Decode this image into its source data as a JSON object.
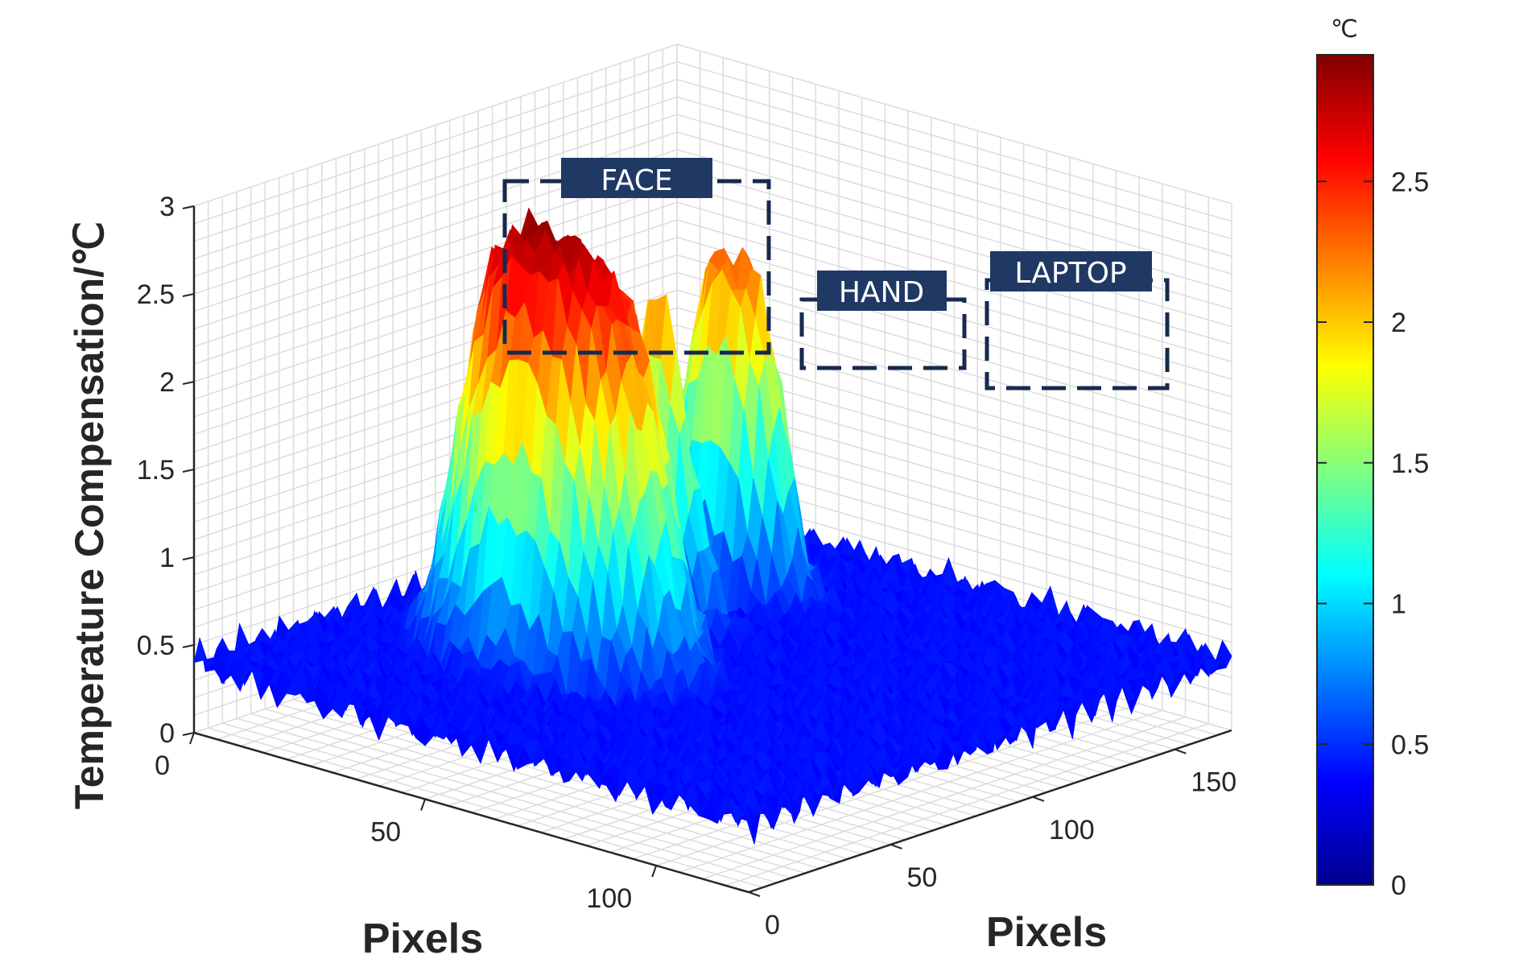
{
  "chart_data": {
    "type": "surface",
    "zlabel": "Temperature Compensation/℃",
    "xlabel": "Pixels",
    "ylabel": "Pixels",
    "x_ticks": [
      0,
      50,
      100
    ],
    "y_ticks": [
      0,
      50,
      100,
      150
    ],
    "z_ticks": [
      "0",
      "0.5",
      "1",
      "1.5",
      "2",
      "2.5",
      "3"
    ],
    "zlim": [
      0,
      3
    ],
    "grid": true,
    "colormap": "jet",
    "colorbar": {
      "unit": "℃",
      "ticks": [
        "0",
        "0.5",
        "1",
        "1.5",
        "2",
        "2.5"
      ],
      "range": [
        0,
        2.95
      ]
    },
    "annotations": [
      {
        "label": "FACE",
        "peak": 2.95
      },
      {
        "label": "HAND",
        "peak": 2.3
      },
      {
        "label": "LAPTOP",
        "peak": 2.3
      }
    ],
    "baseline": 0.4,
    "regions": [
      {
        "name": "FACE",
        "peak": 2.95
      },
      {
        "name": "HAND",
        "peak": 2.3
      },
      {
        "name": "LAPTOP",
        "peak": 2.3
      }
    ]
  }
}
